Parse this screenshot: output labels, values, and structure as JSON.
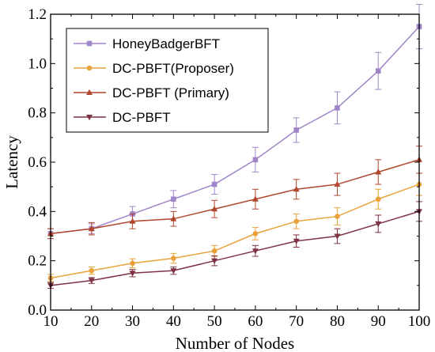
{
  "chart_data": {
    "type": "line",
    "title": "",
    "xlabel": "Number of Nodes",
    "ylabel": "Latency",
    "x": [
      10,
      20,
      30,
      40,
      50,
      60,
      70,
      80,
      90,
      100
    ],
    "xlim": [
      10,
      100
    ],
    "ylim": [
      0.0,
      1.2
    ],
    "xticks": [
      "10",
      "20",
      "30",
      "40",
      "50",
      "60",
      "70",
      "80",
      "90",
      "100"
    ],
    "yticks": [
      "0.0",
      "0.2",
      "0.4",
      "0.6",
      "0.8",
      "1.0",
      "1.2"
    ],
    "grid": false,
    "legend_position": "top-left",
    "series": [
      {
        "name": "HoneyBadgerBFT",
        "color": "#9f86c9",
        "marker": "square",
        "values": [
          0.31,
          0.33,
          0.39,
          0.45,
          0.51,
          0.61,
          0.73,
          0.82,
          0.97,
          1.15
        ],
        "errors": [
          0.02,
          0.02,
          0.03,
          0.035,
          0.04,
          0.05,
          0.05,
          0.065,
          0.075,
          0.09
        ]
      },
      {
        "name": "DC-PBFT(Proposer)",
        "color": "#e9a23b",
        "marker": "circle",
        "values": [
          0.13,
          0.16,
          0.19,
          0.21,
          0.24,
          0.31,
          0.36,
          0.38,
          0.45,
          0.51
        ],
        "errors": [
          0.015,
          0.015,
          0.018,
          0.02,
          0.022,
          0.025,
          0.03,
          0.035,
          0.04,
          0.045
        ]
      },
      {
        "name": "DC-PBFT (Primary)",
        "color": "#b0472d",
        "marker": "triangle-up",
        "values": [
          0.31,
          0.33,
          0.36,
          0.37,
          0.41,
          0.45,
          0.49,
          0.51,
          0.56,
          0.61
        ],
        "errors": [
          0.02,
          0.025,
          0.03,
          0.03,
          0.035,
          0.04,
          0.04,
          0.045,
          0.05,
          0.055
        ]
      },
      {
        "name": "DC-PBFT",
        "color": "#7e3242",
        "marker": "triangle-down",
        "values": [
          0.1,
          0.12,
          0.15,
          0.16,
          0.2,
          0.24,
          0.28,
          0.3,
          0.35,
          0.4
        ],
        "errors": [
          0.012,
          0.012,
          0.015,
          0.015,
          0.02,
          0.022,
          0.025,
          0.03,
          0.035,
          0.04
        ]
      }
    ]
  }
}
